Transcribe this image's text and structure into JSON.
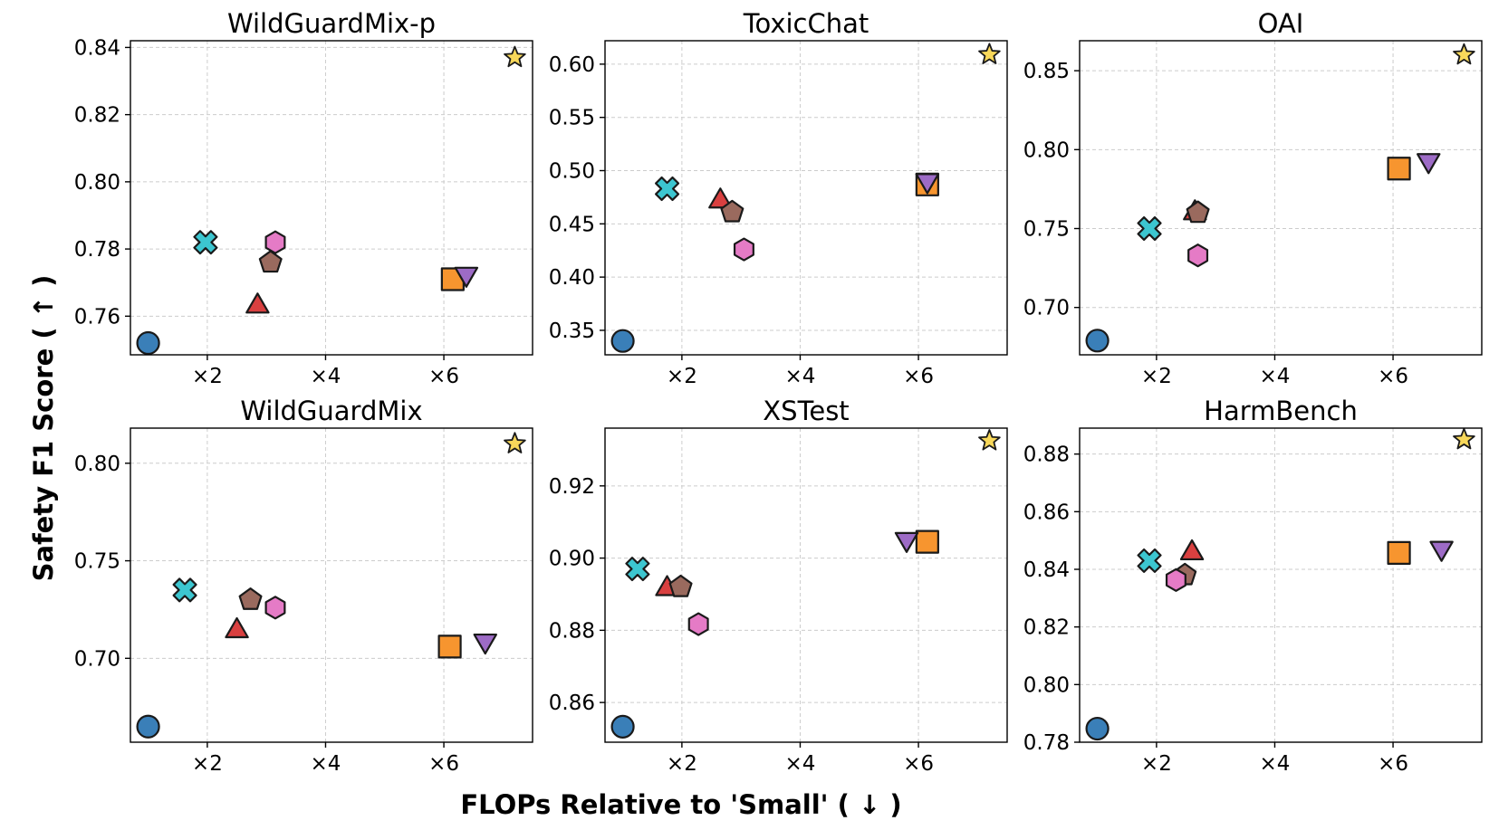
{
  "figure": {
    "ylabel": "Safety F1 Score ( ↑ )",
    "xlabel": "FLOPs Relative to 'Small' ( ↓ )"
  },
  "chart_data": [
    {
      "type": "scatter",
      "title": "WildGuardMix-p",
      "xlim": [
        0.7,
        7.5
      ],
      "ylim": [
        0.7485,
        0.842
      ],
      "yticks": [
        "0.76",
        "0.78",
        "0.80",
        "0.82",
        "0.84"
      ],
      "ytick_values": [
        0.76,
        0.78,
        0.8,
        0.82,
        0.84
      ],
      "xticks": [
        "×2",
        "×4",
        "×6"
      ],
      "xtick_values": [
        2,
        4,
        6
      ],
      "grid": true,
      "points": [
        {
          "marker": "circle",
          "color": "#3a7fb8",
          "x": 1.0,
          "y": 0.752
        },
        {
          "marker": "x",
          "color": "#3cc6d0",
          "x": 1.97,
          "y": 0.782
        },
        {
          "marker": "triangle-up",
          "color": "#d94040",
          "x": 2.85,
          "y": 0.7635
        },
        {
          "marker": "pentagon",
          "color": "#9a6a5e",
          "x": 3.07,
          "y": 0.776
        },
        {
          "marker": "hexagon",
          "color": "#e57bc6",
          "x": 3.15,
          "y": 0.782
        },
        {
          "marker": "square",
          "color": "#f7952f",
          "x": 6.15,
          "y": 0.771
        },
        {
          "marker": "triangle-down",
          "color": "#9d6bc6",
          "x": 6.38,
          "y": 0.772
        },
        {
          "marker": "star",
          "color": "#f8d85a",
          "x": 7.2,
          "y": 0.837
        }
      ]
    },
    {
      "type": "scatter",
      "title": "ToxicChat",
      "xlim": [
        0.7,
        7.5
      ],
      "ylim": [
        0.327,
        0.622
      ],
      "yticks": [
        "0.35",
        "0.40",
        "0.45",
        "0.50",
        "0.55",
        "0.60"
      ],
      "ytick_values": [
        0.35,
        0.4,
        0.45,
        0.5,
        0.55,
        0.6
      ],
      "xticks": [
        "×2",
        "×4",
        "×6"
      ],
      "xtick_values": [
        2,
        4,
        6
      ],
      "grid": true,
      "points": [
        {
          "marker": "circle",
          "color": "#3a7fb8",
          "x": 1.0,
          "y": 0.34
        },
        {
          "marker": "x",
          "color": "#3cc6d0",
          "x": 1.75,
          "y": 0.483
        },
        {
          "marker": "triangle-up",
          "color": "#d94040",
          "x": 2.65,
          "y": 0.473
        },
        {
          "marker": "pentagon",
          "color": "#9a6a5e",
          "x": 2.85,
          "y": 0.461
        },
        {
          "marker": "hexagon",
          "color": "#e57bc6",
          "x": 3.05,
          "y": 0.426
        },
        {
          "marker": "square",
          "color": "#f7952f",
          "x": 6.15,
          "y": 0.487
        },
        {
          "marker": "triangle-down",
          "color": "#9d6bc6",
          "x": 6.15,
          "y": 0.489
        },
        {
          "marker": "star",
          "color": "#f8d85a",
          "x": 7.2,
          "y": 0.609
        }
      ]
    },
    {
      "type": "scatter",
      "title": "OAI",
      "xlim": [
        0.7,
        7.5
      ],
      "ylim": [
        0.67,
        0.869
      ],
      "yticks": [
        "0.70",
        "0.75",
        "0.80",
        "0.85"
      ],
      "ytick_values": [
        0.7,
        0.75,
        0.8,
        0.85
      ],
      "xticks": [
        "×2",
        "×4",
        "×6"
      ],
      "xtick_values": [
        2,
        4,
        6
      ],
      "grid": true,
      "points": [
        {
          "marker": "circle",
          "color": "#3a7fb8",
          "x": 1.0,
          "y": 0.679
        },
        {
          "marker": "x",
          "color": "#3cc6d0",
          "x": 1.88,
          "y": 0.75
        },
        {
          "marker": "triangle-up",
          "color": "#d94040",
          "x": 2.65,
          "y": 0.761
        },
        {
          "marker": "pentagon",
          "color": "#9a6a5e",
          "x": 2.7,
          "y": 0.76
        },
        {
          "marker": "hexagon",
          "color": "#e57bc6",
          "x": 2.7,
          "y": 0.733
        },
        {
          "marker": "square",
          "color": "#f7952f",
          "x": 6.1,
          "y": 0.788
        },
        {
          "marker": "triangle-down",
          "color": "#9d6bc6",
          "x": 6.6,
          "y": 0.792
        },
        {
          "marker": "star",
          "color": "#f8d85a",
          "x": 7.2,
          "y": 0.86
        }
      ]
    },
    {
      "type": "scatter",
      "title": "WildGuardMix",
      "xlim": [
        0.7,
        7.5
      ],
      "ylim": [
        0.657,
        0.818
      ],
      "yticks": [
        "0.70",
        "0.75",
        "0.80"
      ],
      "ytick_values": [
        0.7,
        0.75,
        0.8
      ],
      "xticks": [
        "×2",
        "×4",
        "×6"
      ],
      "xtick_values": [
        2,
        4,
        6
      ],
      "grid": true,
      "points": [
        {
          "marker": "circle",
          "color": "#3a7fb8",
          "x": 1.0,
          "y": 0.665
        },
        {
          "marker": "x",
          "color": "#3cc6d0",
          "x": 1.62,
          "y": 0.735
        },
        {
          "marker": "triangle-up",
          "color": "#d94040",
          "x": 2.5,
          "y": 0.715
        },
        {
          "marker": "pentagon",
          "color": "#9a6a5e",
          "x": 2.73,
          "y": 0.73
        },
        {
          "marker": "hexagon",
          "color": "#e57bc6",
          "x": 3.15,
          "y": 0.726
        },
        {
          "marker": "square",
          "color": "#f7952f",
          "x": 6.1,
          "y": 0.706
        },
        {
          "marker": "triangle-down",
          "color": "#9d6bc6",
          "x": 6.7,
          "y": 0.708
        },
        {
          "marker": "star",
          "color": "#f8d85a",
          "x": 7.2,
          "y": 0.81
        }
      ]
    },
    {
      "type": "scatter",
      "title": "XSTest",
      "xlim": [
        0.7,
        7.5
      ],
      "ylim": [
        0.849,
        0.936
      ],
      "yticks": [
        "0.86",
        "0.88",
        "0.90",
        "0.92"
      ],
      "ytick_values": [
        0.86,
        0.88,
        0.9,
        0.92
      ],
      "xticks": [
        "×2",
        "×4",
        "×6"
      ],
      "xtick_values": [
        2,
        4,
        6
      ],
      "grid": true,
      "points": [
        {
          "marker": "circle",
          "color": "#3a7fb8",
          "x": 1.0,
          "y": 0.8533
        },
        {
          "marker": "x",
          "color": "#3cc6d0",
          "x": 1.25,
          "y": 0.897
        },
        {
          "marker": "triangle-up",
          "color": "#d94040",
          "x": 1.75,
          "y": 0.892
        },
        {
          "marker": "pentagon",
          "color": "#9a6a5e",
          "x": 1.98,
          "y": 0.892
        },
        {
          "marker": "hexagon",
          "color": "#e57bc6",
          "x": 2.28,
          "y": 0.8817
        },
        {
          "marker": "square",
          "color": "#f7952f",
          "x": 6.15,
          "y": 0.9045
        },
        {
          "marker": "triangle-down",
          "color": "#9d6bc6",
          "x": 5.8,
          "y": 0.9047
        },
        {
          "marker": "star",
          "color": "#f8d85a",
          "x": 7.2,
          "y": 0.9325
        }
      ]
    },
    {
      "type": "scatter",
      "title": "HarmBench",
      "xlim": [
        0.7,
        7.5
      ],
      "ylim": [
        0.78,
        0.889
      ],
      "yticks": [
        "0.78",
        "0.80",
        "0.82",
        "0.84",
        "0.86",
        "0.88"
      ],
      "ytick_values": [
        0.78,
        0.8,
        0.82,
        0.84,
        0.86,
        0.88
      ],
      "xticks": [
        "×2",
        "×4",
        "×6"
      ],
      "xtick_values": [
        2,
        4,
        6
      ],
      "grid": true,
      "points": [
        {
          "marker": "circle",
          "color": "#3a7fb8",
          "x": 1.0,
          "y": 0.7847
        },
        {
          "marker": "x",
          "color": "#3cc6d0",
          "x": 1.88,
          "y": 0.843
        },
        {
          "marker": "triangle-up",
          "color": "#d94040",
          "x": 2.6,
          "y": 0.8463
        },
        {
          "marker": "pentagon",
          "color": "#9a6a5e",
          "x": 2.48,
          "y": 0.838
        },
        {
          "marker": "hexagon",
          "color": "#e57bc6",
          "x": 2.33,
          "y": 0.8363
        },
        {
          "marker": "square",
          "color": "#f7952f",
          "x": 6.1,
          "y": 0.8457
        },
        {
          "marker": "triangle-down",
          "color": "#9d6bc6",
          "x": 6.82,
          "y": 0.8467
        },
        {
          "marker": "star",
          "color": "#f8d85a",
          "x": 7.2,
          "y": 0.885
        }
      ]
    }
  ]
}
